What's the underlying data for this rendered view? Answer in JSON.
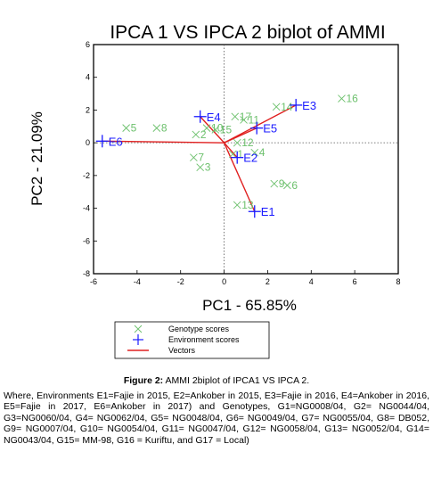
{
  "chart_data": {
    "type": "scatter",
    "title": "IPCA 1 VS IPCA 2 biplot of AMMI",
    "xlabel": "PC1 - 65.85%",
    "ylabel": "PC2 - 21.09%",
    "xlim": [
      -6,
      8
    ],
    "ylim": [
      -8,
      6
    ],
    "xticks": [
      -6,
      -4,
      -2,
      0,
      2,
      4,
      6,
      8
    ],
    "yticks": [
      6,
      4,
      2,
      0,
      -2,
      -4,
      -6,
      -8
    ],
    "grid": false,
    "reference_lines": "dotted lines at x=0 and y=0",
    "legend_position": "bottom-left, below plot",
    "series": [
      {
        "name": "Genotype scores",
        "marker": "x",
        "color": "#6cc06c",
        "points": [
          {
            "label": "1",
            "x": 0.4,
            "y": -0.7
          },
          {
            "label": "2",
            "x": -1.3,
            "y": 0.5
          },
          {
            "label": "3",
            "x": -1.1,
            "y": -1.5
          },
          {
            "label": "4",
            "x": 1.4,
            "y": -0.6
          },
          {
            "label": "5",
            "x": -4.5,
            "y": 0.9
          },
          {
            "label": "6",
            "x": 2.9,
            "y": -2.6
          },
          {
            "label": "7",
            "x": -1.4,
            "y": -0.9
          },
          {
            "label": "8",
            "x": -3.1,
            "y": 0.9
          },
          {
            "label": "9",
            "x": 2.3,
            "y": -2.5
          },
          {
            "label": "10",
            "x": -0.8,
            "y": 0.9
          },
          {
            "label": "11",
            "x": 0.9,
            "y": 1.4
          },
          {
            "label": "12",
            "x": 0.6,
            "y": 0.0
          },
          {
            "label": "13",
            "x": 0.6,
            "y": -3.8
          },
          {
            "label": "14",
            "x": 2.4,
            "y": 2.2
          },
          {
            "label": "15",
            "x": -0.4,
            "y": 0.8
          },
          {
            "label": "16",
            "x": 5.4,
            "y": 2.7
          },
          {
            "label": "17",
            "x": 0.5,
            "y": 1.6
          }
        ]
      },
      {
        "name": "Environment scores",
        "marker": "+",
        "color": "#1a1aff",
        "points": [
          {
            "label": "E1",
            "x": 1.4,
            "y": -4.2
          },
          {
            "label": "E2",
            "x": 0.6,
            "y": -0.9
          },
          {
            "label": "E3",
            "x": 3.3,
            "y": 2.3
          },
          {
            "label": "E4",
            "x": -1.1,
            "y": 1.6
          },
          {
            "label": "E5",
            "x": 1.5,
            "y": 0.9
          },
          {
            "label": "E6",
            "x": -5.6,
            "y": 0.1
          }
        ]
      }
    ],
    "vectors": {
      "name": "Vectors",
      "color": "#e02020",
      "from": [
        0,
        0
      ],
      "to": [
        "E1",
        "E2",
        "E3",
        "E4",
        "E5",
        "E6"
      ]
    },
    "legend": [
      {
        "symbol": "x",
        "color": "#6cc06c",
        "label": "Genotype scores"
      },
      {
        "symbol": "+",
        "color": "#1a1aff",
        "label": "Environment scores"
      },
      {
        "symbol": "line",
        "color": "#e02020",
        "label": "Vectors"
      }
    ]
  },
  "caption": {
    "figure_label": "Figure 2:",
    "figure_title": "AMMI 2biplot of IPCA1 VS IPCA 2.",
    "text": "Where, Environments E1=Fajie in 2015,  E2=Ankober in 2015,  E3=Fajie in 2016, E4=Ankober in 2016,  E5=Fajie in 2017,  E6=Ankober in 2017) and Genotypes, G1=NG0008/04,  G2=  NG0044/04,  G3=NG0060/04,  G4=  NG0062/04,  G5= NG0048/04, G6= NG0049/04, G7= NG0055/04, G8= DB052, G9= NG0007/04, G10= NG0054/04, G11= NG0047/04, G12= NG0058/04, G13= NG0052/04, G14= NG0043/04, G15= MM-98, G16 = Kuriftu, and G17 = Local)"
  }
}
